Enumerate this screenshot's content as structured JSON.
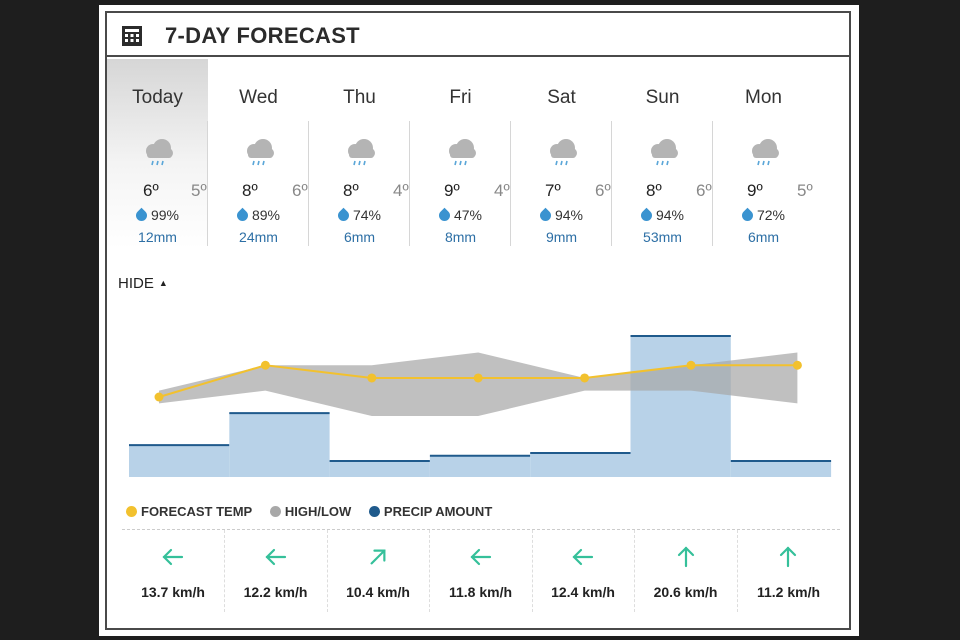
{
  "header": {
    "title": "7-DAY FORECAST",
    "icon": "calendar-icon"
  },
  "days": [
    {
      "name": "Today",
      "high": "6º",
      "low": "5º",
      "pop": "99%",
      "precip": "12mm",
      "icon": "rain-cloud-icon"
    },
    {
      "name": "Wed",
      "high": "8º",
      "low": "6º",
      "pop": "89%",
      "precip": "24mm",
      "icon": "rain-cloud-icon"
    },
    {
      "name": "Thu",
      "high": "8º",
      "low": "4º",
      "pop": "74%",
      "precip": "6mm",
      "icon": "rain-cloud-icon"
    },
    {
      "name": "Fri",
      "high": "9º",
      "low": "4º",
      "pop": "47%",
      "precip": "8mm",
      "icon": "rain-cloud-icon"
    },
    {
      "name": "Sat",
      "high": "7º",
      "low": "6º",
      "pop": "94%",
      "precip": "9mm",
      "icon": "rain-cloud-icon"
    },
    {
      "name": "Sun",
      "high": "8º",
      "low": "6º",
      "pop": "94%",
      "precip": "53mm",
      "icon": "rain-cloud-icon"
    },
    {
      "name": "Mon",
      "high": "9º",
      "low": "5º",
      "pop": "72%",
      "precip": "6mm",
      "icon": "rain-cloud-icon"
    }
  ],
  "toggle": {
    "label": "HIDE"
  },
  "legend": [
    {
      "label": "FORECAST TEMP",
      "color": "#f2c12e"
    },
    {
      "label": "HIGH/LOW",
      "color": "#a8a8a8"
    },
    {
      "label": "PRECIP AMOUNT",
      "color": "#1f5a8c"
    }
  ],
  "chart_data": {
    "type": "area",
    "categories": [
      "Today",
      "Wed",
      "Thu",
      "Fri",
      "Sat",
      "Sun",
      "Mon"
    ],
    "series": [
      {
        "name": "FORECAST TEMP",
        "values": [
          5.5,
          8,
          7,
          7,
          7,
          8,
          8
        ]
      },
      {
        "name": "HIGH/LOW",
        "high": [
          6,
          8,
          8,
          9,
          7,
          8,
          9
        ],
        "low": [
          5,
          6,
          4,
          4,
          6,
          6,
          5
        ]
      },
      {
        "name": "PRECIP AMOUNT",
        "values": [
          12,
          24,
          6,
          8,
          9,
          53,
          6
        ]
      }
    ],
    "colors": {
      "temp": "#f2c12e",
      "band": "#a8a8a8",
      "precip_fill": "#b8d2e8",
      "precip_line": "#1f5a8c"
    }
  },
  "wind": [
    {
      "speed": "13.7 km/h",
      "dir": "left"
    },
    {
      "speed": "12.2 km/h",
      "dir": "left"
    },
    {
      "speed": "10.4 km/h",
      "dir": "up-right"
    },
    {
      "speed": "11.8 km/h",
      "dir": "left"
    },
    {
      "speed": "12.4 km/h",
      "dir": "left"
    },
    {
      "speed": "20.6 km/h",
      "dir": "up"
    },
    {
      "speed": "11.2 km/h",
      "dir": "up"
    }
  ]
}
